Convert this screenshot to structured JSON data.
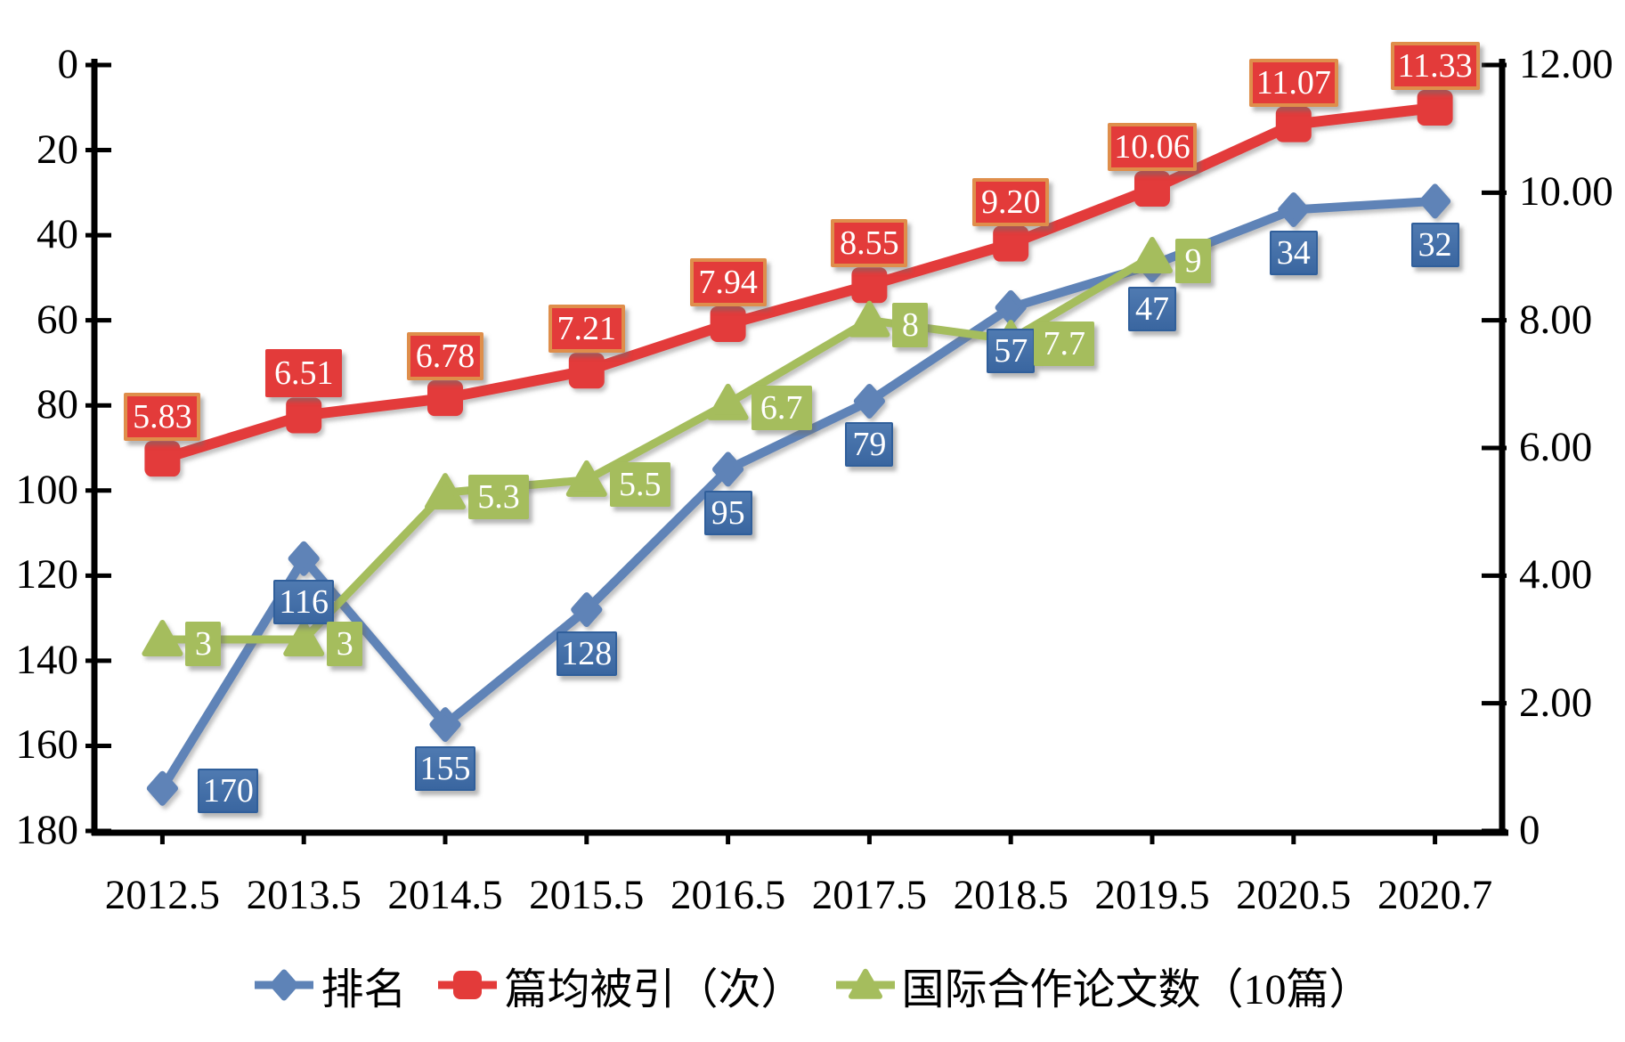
{
  "chart_data": {
    "type": "line",
    "categories": [
      "2012.5",
      "2013.5",
      "2014.5",
      "2015.5",
      "2016.5",
      "2017.5",
      "2018.5",
      "2019.5",
      "2020.5",
      "2020.7"
    ],
    "left_axis": {
      "ticks": [
        "0",
        "20",
        "40",
        "60",
        "80",
        "100",
        "120",
        "140",
        "160",
        "180"
      ],
      "min": 0,
      "max": 180,
      "inverted": true
    },
    "right_axis": {
      "ticks": [
        "12.00",
        "10.00",
        "8.00",
        "6.00",
        "4.00",
        "2.00",
        "0"
      ],
      "min": 0,
      "max": 12
    },
    "grid": false,
    "legend_position": "bottom",
    "series": [
      {
        "name": "排名",
        "axis": "left",
        "marker": "diamond",
        "color": "#5e83b7",
        "label_bg": "#3f6ba3",
        "values": [
          170,
          116,
          155,
          128,
          95,
          79,
          57,
          47,
          34,
          32
        ],
        "labels": [
          "170",
          "116",
          "155",
          "128",
          "95",
          "79",
          "57",
          "47",
          "34",
          "32"
        ]
      },
      {
        "name": "篇均被引（次）",
        "axis": "right",
        "marker": "square",
        "color": "#e33b3a",
        "label_bg": "#e33b3a",
        "label_border": "#df8e4b",
        "values": [
          5.83,
          6.51,
          6.78,
          7.21,
          7.94,
          8.55,
          9.2,
          10.06,
          11.07,
          11.33
        ],
        "labels": [
          "5.83",
          "6.51",
          "6.78",
          "7.21",
          "7.94",
          "8.55",
          "9.20",
          "10.06",
          "11.07",
          "11.33"
        ]
      },
      {
        "name": "国际合作论文数（10篇）",
        "axis": "right",
        "marker": "triangle",
        "color": "#a5bd5d",
        "label_bg": "#a5bd5d",
        "values": [
          3,
          3,
          5.3,
          5.5,
          6.7,
          8,
          7.7,
          9
        ],
        "labels": [
          "3",
          "3",
          "5.3",
          "5.5",
          "6.7",
          "8",
          "7.7",
          "9"
        ]
      }
    ],
    "legend": [
      "排名",
      "篇均被引（次）",
      "国际合作论文数（10篇）"
    ]
  }
}
